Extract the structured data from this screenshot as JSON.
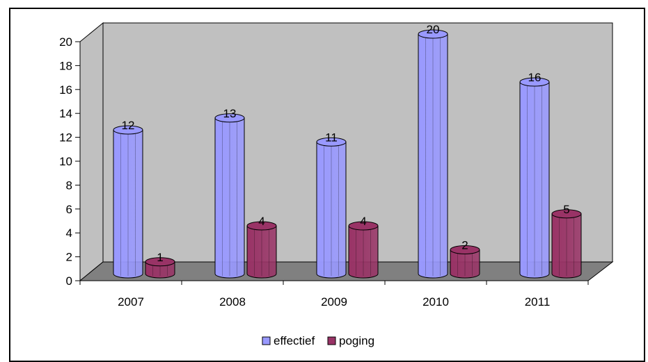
{
  "chart_data": {
    "type": "bar",
    "style": "3d-cylinder",
    "categories": [
      "2007",
      "2008",
      "2009",
      "2010",
      "2011"
    ],
    "series": [
      {
        "name": "effectief",
        "values": [
          12,
          13,
          11,
          20,
          16
        ],
        "color": "#9999ff"
      },
      {
        "name": "poging",
        "values": [
          1,
          4,
          4,
          2,
          5
        ],
        "color": "#993366"
      }
    ],
    "title": "",
    "xlabel": "",
    "ylabel": "",
    "ylim": [
      0,
      20
    ],
    "yticks": [
      0,
      2,
      4,
      6,
      8,
      10,
      12,
      14,
      16,
      18,
      20
    ],
    "grid": false,
    "legend": "bottom",
    "wall_color": "#c0c0c0",
    "floor_color": "#808080"
  }
}
